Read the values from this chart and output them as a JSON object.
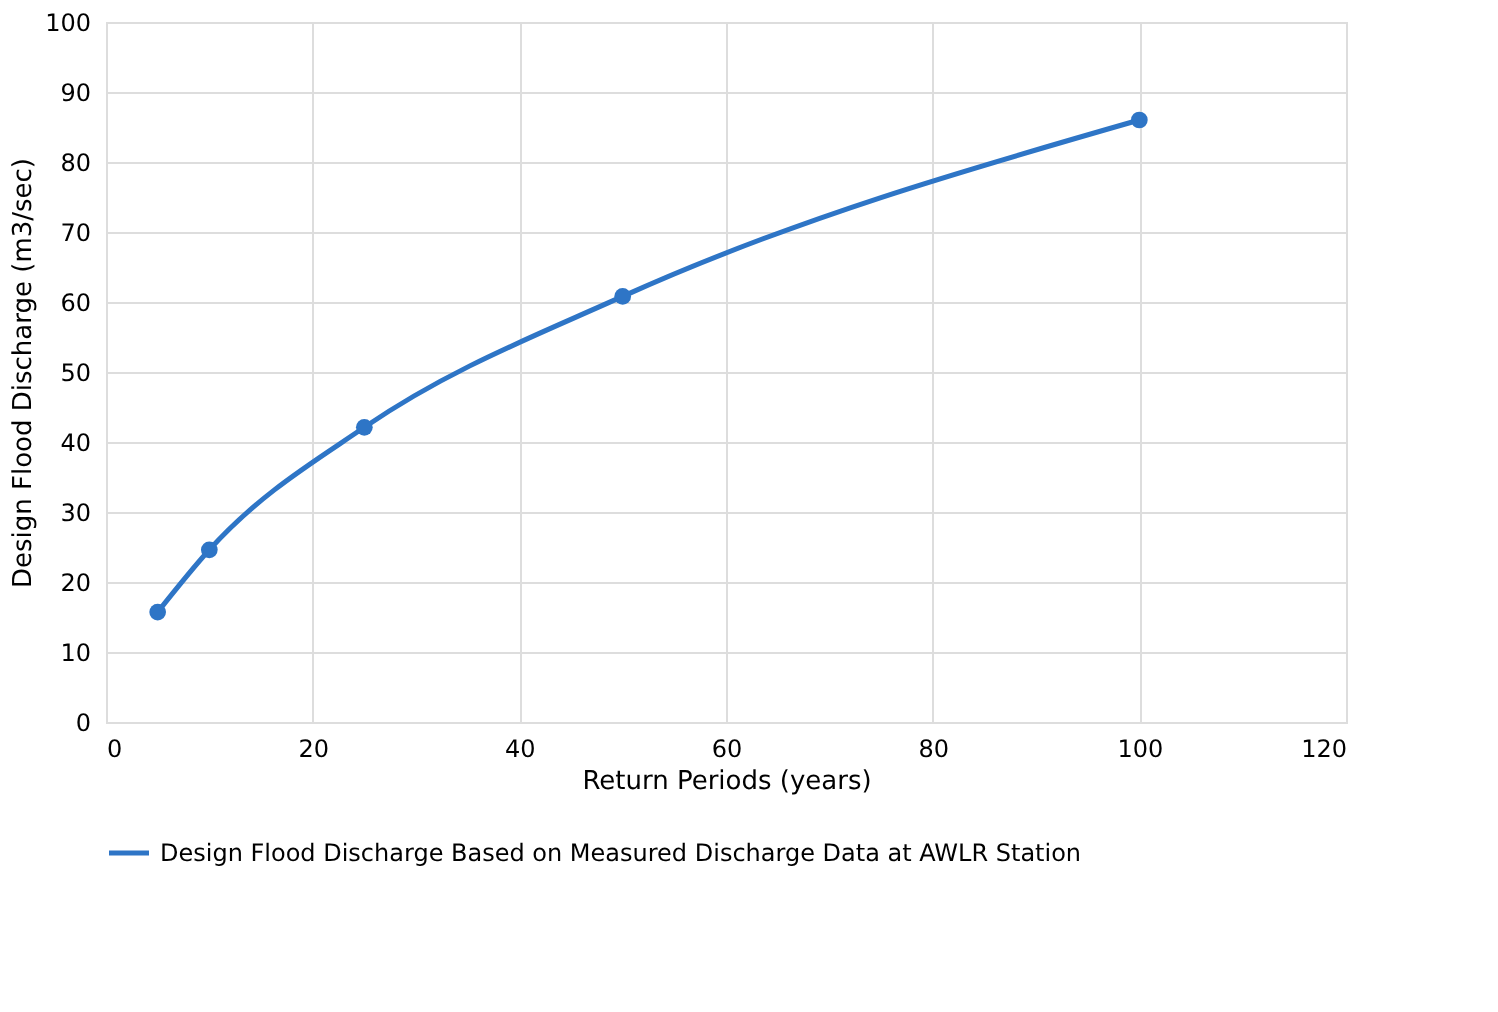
{
  "chart_data": {
    "type": "line",
    "xlabel": "Return Periods (years)",
    "ylabel": "Design Flood Discharge (m3/sec)",
    "x": [
      5,
      10,
      25,
      50,
      100
    ],
    "series": [
      {
        "name": "Design Flood Discharge Based on Measured Discharge Data at AWLR Station",
        "color": "#2e75c6",
        "values": [
          15.7,
          24.6,
          42.1,
          60.8,
          86.0
        ]
      }
    ],
    "xlim": [
      0,
      120
    ],
    "xticks": [
      0,
      20,
      40,
      60,
      80,
      100,
      120
    ],
    "ylim": [
      0,
      100
    ],
    "yticks": [
      0,
      10,
      20,
      30,
      40,
      50,
      60,
      70,
      80,
      90,
      100
    ],
    "grid": true,
    "legend": "bottom",
    "marker": "circle",
    "line_style": "solid"
  }
}
